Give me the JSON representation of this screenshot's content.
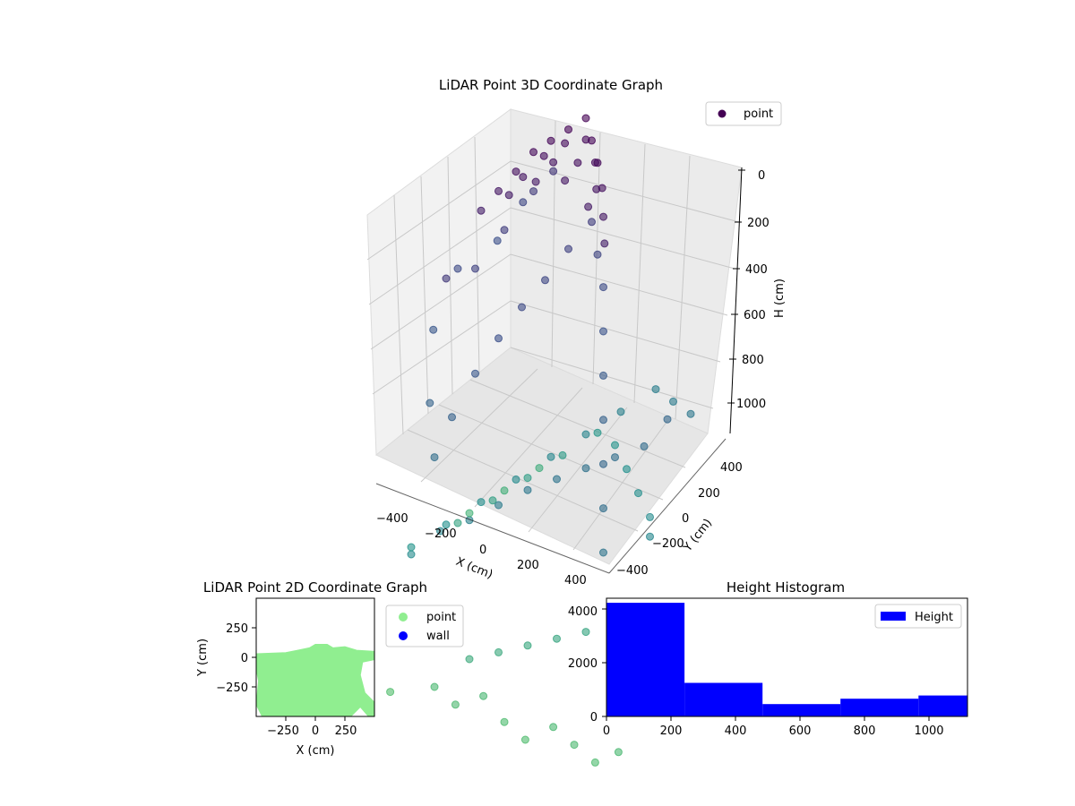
{
  "chart_data": [
    {
      "type": "scatter",
      "projection": "3d",
      "title": "LiDAR Point 3D Coordinate Graph",
      "xlabel": "X (cm)",
      "ylabel": "Y (cm)",
      "zlabel": "H (cm)",
      "xlim": [
        -500,
        500
      ],
      "ylim": [
        -450,
        500
      ],
      "zlim": [
        1100,
        0
      ],
      "z_axis_inverted": true,
      "xticks": [
        "−400",
        "−200",
        "0",
        "200",
        "400"
      ],
      "yticks": [
        "−400",
        "−200",
        "0",
        "200",
        "400"
      ],
      "zticks": [
        "0",
        "200",
        "400",
        "600",
        "800",
        "1000"
      ],
      "colormap": "viridis",
      "grid": true,
      "legend": {
        "placement": "top-right",
        "entries": [
          {
            "label": "point",
            "color": "#440154"
          }
        ]
      },
      "series": [
        {
          "name": "point",
          "description_note": "",
          "points": [
            [
              -150,
              150,
              30
            ],
            [
              -100,
              200,
              20
            ],
            [
              -50,
              250,
              10
            ],
            [
              0,
              300,
              0
            ],
            [
              50,
              250,
              15
            ],
            [
              100,
              200,
              30
            ],
            [
              -200,
              100,
              60
            ],
            [
              -120,
              180,
              50
            ],
            [
              -60,
              240,
              40
            ],
            [
              20,
              260,
              25
            ],
            [
              80,
              220,
              45
            ],
            [
              140,
              160,
              60
            ],
            [
              -250,
              50,
              90
            ],
            [
              -180,
              120,
              80
            ],
            [
              -90,
              200,
              70
            ],
            [
              10,
              210,
              55
            ],
            [
              110,
              170,
              75
            ],
            [
              170,
              110,
              95
            ],
            [
              -300,
              0,
              120
            ],
            [
              -220,
              80,
              110
            ],
            [
              -140,
              150,
              100
            ],
            [
              -30,
              180,
              90
            ],
            [
              90,
              140,
              105
            ],
            [
              200,
              60,
              125
            ],
            [
              -400,
              -100,
              250
            ],
            [
              -350,
              50,
              300
            ],
            [
              -300,
              200,
              280
            ],
            [
              -450,
              100,
              350
            ],
            [
              -480,
              -50,
              420
            ],
            [
              -420,
              -200,
              500
            ],
            [
              -380,
              300,
              380
            ],
            [
              -320,
              400,
              330
            ],
            [
              -250,
              350,
              260
            ],
            [
              -200,
              420,
              240
            ],
            [
              -350,
              -300,
              560
            ],
            [
              -300,
              -250,
              480
            ],
            [
              -250,
              -150,
              420
            ],
            [
              -200,
              -50,
              380
            ],
            [
              -150,
              50,
              350
            ],
            [
              -100,
              150,
              330
            ],
            [
              -50,
              250,
              300
            ],
            [
              0,
              350,
              280
            ],
            [
              50,
              300,
              320
            ],
            [
              100,
              250,
              360
            ],
            [
              150,
              150,
              400
            ],
            [
              200,
              50,
              440
            ],
            [
              250,
              -50,
              480
            ],
            [
              300,
              -150,
              520
            ],
            [
              350,
              -250,
              560
            ],
            [
              400,
              -350,
              600
            ],
            [
              -400,
              -400,
              750
            ],
            [
              -300,
              -350,
              700
            ],
            [
              -200,
              -300,
              680
            ],
            [
              -100,
              -250,
              650
            ],
            [
              0,
              -200,
              620
            ],
            [
              100,
              -150,
              600
            ],
            [
              200,
              -100,
              580
            ],
            [
              300,
              -50,
              560
            ],
            [
              400,
              0,
              540
            ],
            [
              450,
              100,
              520
            ],
            [
              -450,
              -300,
              800
            ],
            [
              -350,
              -200,
              780
            ],
            [
              -250,
              -100,
              760
            ],
            [
              -150,
              0,
              740
            ],
            [
              -50,
              100,
              720
            ],
            [
              50,
              200,
              700
            ],
            [
              150,
              300,
              680
            ],
            [
              250,
              400,
              660
            ],
            [
              350,
              350,
              640
            ],
            [
              450,
              300,
              620
            ],
            [
              -400,
              0,
              900
            ],
            [
              -300,
              100,
              880
            ],
            [
              -200,
              200,
              860
            ],
            [
              -100,
              300,
              840
            ],
            [
              0,
              400,
              820
            ],
            [
              100,
              350,
              800
            ],
            [
              200,
              250,
              780
            ],
            [
              300,
              150,
              760
            ],
            [
              400,
              50,
              740
            ],
            [
              450,
              -50,
              720
            ],
            [
              -450,
              200,
              1000
            ],
            [
              -350,
              300,
              980
            ],
            [
              -250,
              400,
              960
            ],
            [
              -150,
              -400,
              950
            ],
            [
              -50,
              -350,
              940
            ],
            [
              50,
              -300,
              930
            ],
            [
              150,
              -250,
              920
            ],
            [
              250,
              -200,
              910
            ],
            [
              350,
              -150,
              900
            ],
            [
              450,
              -100,
              890
            ],
            [
              -300,
              -400,
              1050
            ],
            [
              -200,
              -420,
              1060
            ],
            [
              -100,
              -380,
              1040
            ],
            [
              0,
              -400,
              1070
            ],
            [
              100,
              -420,
              1080
            ],
            [
              200,
              -380,
              1050
            ],
            [
              300,
              -400,
              1060
            ],
            [
              400,
              -420,
              1070
            ],
            [
              480,
              -380,
              1050
            ],
            [
              -480,
              -420,
              1090
            ]
          ]
        }
      ]
    },
    {
      "type": "scatter",
      "title": "LiDAR Point 2D Coordinate Graph",
      "xlabel": "X (cm)",
      "ylabel": "Y (cm)",
      "xlim": [
        -500,
        500
      ],
      "ylim": [
        -500,
        500
      ],
      "xticks": [
        "−250",
        "0",
        "250"
      ],
      "yticks": [
        "250",
        "0",
        "−250"
      ],
      "legend": {
        "placement": "outside-right",
        "entries": [
          {
            "label": "point",
            "color": "#90ee90"
          },
          {
            "label": "wall",
            "color": "#0000ff"
          }
        ]
      },
      "series": [
        {
          "name": "point",
          "color": "#90ee90",
          "region_outline": [
            [
              -500,
              30
            ],
            [
              -250,
              40
            ],
            [
              -150,
              60
            ],
            [
              -50,
              80
            ],
            [
              0,
              110
            ],
            [
              100,
              110
            ],
            [
              150,
              80
            ],
            [
              250,
              90
            ],
            [
              350,
              60
            ],
            [
              500,
              50
            ],
            [
              500,
              -20
            ],
            [
              400,
              -40
            ],
            [
              380,
              -150
            ],
            [
              420,
              -300
            ],
            [
              500,
              -380
            ],
            [
              500,
              -500
            ],
            [
              450,
              -500
            ],
            [
              380,
              -420
            ],
            [
              300,
              -500
            ],
            [
              -450,
              -500
            ],
            [
              -500,
              -400
            ],
            [
              -480,
              -200
            ],
            [
              -500,
              -100
            ]
          ]
        },
        {
          "name": "wall",
          "color": "#0000ff",
          "points": []
        }
      ]
    },
    {
      "type": "bar",
      "subtype": "histogram",
      "title": "Height Histogram",
      "xlim": [
        0,
        1120
      ],
      "ylim": [
        0,
        4400
      ],
      "xticks": [
        "0",
        "200",
        "400",
        "600",
        "800",
        "1000"
      ],
      "yticks": [
        "0",
        "2000",
        "4000"
      ],
      "legend": {
        "placement": "top-right",
        "entries": [
          {
            "label": "Height",
            "color": "#0000ff"
          }
        ]
      },
      "series": [
        {
          "name": "Height",
          "color": "#0000ff",
          "bins": [
            0,
            242,
            484,
            726,
            968,
            1120
          ],
          "values": [
            4230,
            1250,
            460,
            660,
            780
          ]
        }
      ]
    }
  ]
}
